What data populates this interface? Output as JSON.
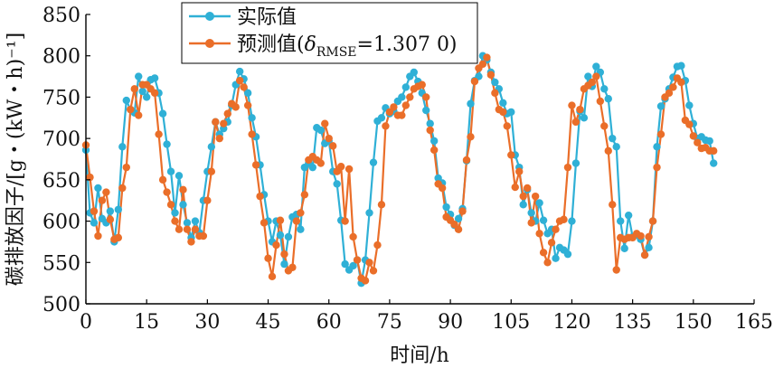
{
  "chart_data": {
    "type": "line",
    "title": "",
    "xlabel": "时间/h",
    "ylabel": "碳排放因子/[g・(kW・h)⁻¹]",
    "xlim": [
      0,
      165
    ],
    "ylim": [
      500,
      850
    ],
    "xticks": [
      0,
      15,
      30,
      45,
      60,
      75,
      90,
      105,
      120,
      135,
      150,
      165
    ],
    "yticks": [
      500,
      550,
      600,
      650,
      700,
      750,
      800,
      850
    ],
    "legend_position": "top-left-center",
    "series": [
      {
        "name": "实际值",
        "color": "#2fb0d6",
        "marker": "circle",
        "points": [
          [
            0,
            686
          ],
          [
            1,
            610
          ],
          [
            2,
            598
          ],
          [
            3,
            640
          ],
          [
            4,
            603
          ],
          [
            5,
            598
          ],
          [
            6,
            612
          ],
          [
            7,
            575
          ],
          [
            8,
            614
          ],
          [
            9,
            690
          ],
          [
            10,
            746
          ],
          [
            11,
            735
          ],
          [
            12,
            731
          ],
          [
            13,
            775
          ],
          [
            14,
            757
          ],
          [
            15,
            750
          ],
          [
            16,
            771
          ],
          [
            17,
            773
          ],
          [
            18,
            755
          ],
          [
            19,
            730
          ],
          [
            20,
            693
          ],
          [
            21,
            660
          ],
          [
            22,
            610
          ],
          [
            23,
            655
          ],
          [
            24,
            620
          ],
          [
            25,
            598
          ],
          [
            26,
            580
          ],
          [
            27,
            600
          ],
          [
            28,
            586
          ],
          [
            29,
            625
          ],
          [
            30,
            660
          ],
          [
            31,
            690
          ],
          [
            32,
            720
          ],
          [
            33,
            705
          ],
          [
            34,
            712
          ],
          [
            35,
            720
          ],
          [
            36,
            740
          ],
          [
            37,
            765
          ],
          [
            38,
            781
          ],
          [
            39,
            772
          ],
          [
            40,
            755
          ],
          [
            41,
            725
          ],
          [
            42,
            702
          ],
          [
            43,
            668
          ],
          [
            44,
            632
          ],
          [
            45,
            600
          ],
          [
            46,
            575
          ],
          [
            47,
            600
          ],
          [
            48,
            583
          ],
          [
            49,
            548
          ],
          [
            50,
            581
          ],
          [
            51,
            605
          ],
          [
            52,
            608
          ],
          [
            53,
            590
          ],
          [
            54,
            665
          ],
          [
            55,
            670
          ],
          [
            56,
            665
          ],
          [
            57,
            713
          ],
          [
            58,
            710
          ],
          [
            59,
            694
          ],
          [
            60,
            697
          ],
          [
            61,
            660
          ],
          [
            62,
            645
          ],
          [
            63,
            601
          ],
          [
            64,
            548
          ],
          [
            65,
            541
          ],
          [
            66,
            546
          ],
          [
            67,
            553
          ],
          [
            68,
            525
          ],
          [
            69,
            553
          ],
          [
            70,
            610
          ],
          [
            71,
            671
          ],
          [
            72,
            721
          ],
          [
            73,
            725
          ],
          [
            74,
            737
          ],
          [
            75,
            730
          ],
          [
            76,
            733
          ],
          [
            77,
            745
          ],
          [
            78,
            750
          ],
          [
            79,
            762
          ],
          [
            80,
            775
          ],
          [
            81,
            780
          ],
          [
            82,
            769
          ],
          [
            83,
            755
          ],
          [
            84,
            734
          ],
          [
            85,
            718
          ],
          [
            86,
            697
          ],
          [
            87,
            652
          ],
          [
            88,
            646
          ],
          [
            89,
            617
          ],
          [
            90,
            608
          ],
          [
            91,
            595
          ],
          [
            92,
            603
          ],
          [
            93,
            615
          ],
          [
            94,
            673
          ],
          [
            95,
            742
          ],
          [
            96,
            770
          ],
          [
            97,
            775
          ],
          [
            98,
            800
          ],
          [
            99,
            795
          ],
          [
            100,
            780
          ],
          [
            101,
            768
          ],
          [
            102,
            760
          ],
          [
            103,
            743
          ],
          [
            104,
            730
          ],
          [
            105,
            732
          ],
          [
            106,
            680
          ],
          [
            107,
            665
          ],
          [
            108,
            620
          ],
          [
            109,
            638
          ],
          [
            110,
            610
          ],
          [
            111,
            600
          ],
          [
            112,
            622
          ],
          [
            113,
            601
          ],
          [
            114,
            585
          ],
          [
            115,
            590
          ],
          [
            116,
            555
          ],
          [
            117,
            568
          ],
          [
            118,
            565
          ],
          [
            119,
            560
          ],
          [
            120,
            600
          ],
          [
            121,
            670
          ],
          [
            122,
            733
          ],
          [
            123,
            725
          ],
          [
            124,
            775
          ],
          [
            125,
            763
          ],
          [
            126,
            787
          ],
          [
            127,
            780
          ],
          [
            128,
            760
          ],
          [
            129,
            748
          ],
          [
            130,
            700
          ],
          [
            131,
            690
          ],
          [
            132,
            600
          ],
          [
            133,
            567
          ],
          [
            134,
            607
          ],
          [
            135,
            581
          ],
          [
            136,
            583
          ],
          [
            137,
            578
          ],
          [
            138,
            559
          ],
          [
            139,
            568
          ],
          [
            140,
            600
          ],
          [
            141,
            690
          ],
          [
            142,
            739
          ],
          [
            143,
            748
          ],
          [
            144,
            760
          ],
          [
            145,
            774
          ],
          [
            146,
            787
          ],
          [
            147,
            788
          ],
          [
            148,
            770
          ],
          [
            149,
            740
          ],
          [
            150,
            718
          ],
          [
            151,
            700
          ],
          [
            152,
            702
          ],
          [
            153,
            698
          ],
          [
            154,
            697
          ],
          [
            155,
            670
          ]
        ]
      },
      {
        "name": "预测值(δRMSE=1.307 0)",
        "legend_main": "预测值(",
        "legend_symbol": "δ",
        "legend_sub": "RMSE",
        "legend_tail": "=1.307 0)",
        "color": "#ea6e29",
        "marker": "circle",
        "points": [
          [
            0,
            692
          ],
          [
            1,
            653
          ],
          [
            2,
            612
          ],
          [
            3,
            582
          ],
          [
            4,
            625
          ],
          [
            5,
            635
          ],
          [
            6,
            602
          ],
          [
            7,
            578
          ],
          [
            8,
            580
          ],
          [
            9,
            640
          ],
          [
            10,
            665
          ],
          [
            11,
            735
          ],
          [
            12,
            760
          ],
          [
            13,
            728
          ],
          [
            14,
            765
          ],
          [
            15,
            765
          ],
          [
            16,
            760
          ],
          [
            17,
            755
          ],
          [
            18,
            705
          ],
          [
            19,
            650
          ],
          [
            20,
            635
          ],
          [
            21,
            620
          ],
          [
            22,
            600
          ],
          [
            23,
            590
          ],
          [
            24,
            638
          ],
          [
            25,
            590
          ],
          [
            26,
            575
          ],
          [
            27,
            590
          ],
          [
            28,
            582
          ],
          [
            29,
            582
          ],
          [
            30,
            625
          ],
          [
            31,
            660
          ],
          [
            32,
            720
          ],
          [
            33,
            700
          ],
          [
            34,
            718
          ],
          [
            35,
            730
          ],
          [
            36,
            742
          ],
          [
            37,
            738
          ],
          [
            38,
            770
          ],
          [
            39,
            762
          ],
          [
            40,
            740
          ],
          [
            41,
            705
          ],
          [
            42,
            668
          ],
          [
            43,
            630
          ],
          [
            44,
            598
          ],
          [
            45,
            555
          ],
          [
            46,
            533
          ],
          [
            47,
            571
          ],
          [
            48,
            601
          ],
          [
            49,
            560
          ],
          [
            50,
            540
          ],
          [
            51,
            544
          ],
          [
            52,
            600
          ],
          [
            53,
            610
          ],
          [
            54,
            632
          ],
          [
            55,
            674
          ],
          [
            56,
            678
          ],
          [
            57,
            674
          ],
          [
            58,
            670
          ],
          [
            59,
            718
          ],
          [
            60,
            700
          ],
          [
            61,
            691
          ],
          [
            62,
            660
          ],
          [
            63,
            666
          ],
          [
            64,
            600
          ],
          [
            65,
            663
          ],
          [
            66,
            581
          ],
          [
            67,
            553
          ],
          [
            68,
            531
          ],
          [
            69,
            528
          ],
          [
            70,
            550
          ],
          [
            71,
            540
          ],
          [
            72,
            571
          ],
          [
            73,
            620
          ],
          [
            74,
            715
          ],
          [
            75,
            732
          ],
          [
            76,
            738
          ],
          [
            77,
            728
          ],
          [
            78,
            728
          ],
          [
            79,
            740
          ],
          [
            80,
            750
          ],
          [
            81,
            760
          ],
          [
            82,
            763
          ],
          [
            83,
            765
          ],
          [
            84,
            750
          ],
          [
            85,
            710
          ],
          [
            86,
            686
          ],
          [
            87,
            645
          ],
          [
            88,
            640
          ],
          [
            89,
            605
          ],
          [
            90,
            601
          ],
          [
            91,
            596
          ],
          [
            92,
            590
          ],
          [
            93,
            612
          ],
          [
            94,
            674
          ],
          [
            95,
            702
          ],
          [
            96,
            769
          ],
          [
            97,
            785
          ],
          [
            98,
            790
          ],
          [
            99,
            798
          ],
          [
            100,
            777
          ],
          [
            101,
            755
          ],
          [
            102,
            735
          ],
          [
            103,
            732
          ],
          [
            104,
            715
          ],
          [
            105,
            680
          ],
          [
            106,
            641
          ],
          [
            107,
            660
          ],
          [
            108,
            630
          ],
          [
            109,
            640
          ],
          [
            110,
            598
          ],
          [
            111,
            630
          ],
          [
            112,
            585
          ],
          [
            113,
            562
          ],
          [
            114,
            550
          ],
          [
            115,
            574
          ],
          [
            116,
            590
          ],
          [
            117,
            600
          ],
          [
            118,
            602
          ],
          [
            119,
            665
          ],
          [
            120,
            740
          ],
          [
            121,
            720
          ],
          [
            122,
            735
          ],
          [
            123,
            760
          ],
          [
            124,
            764
          ],
          [
            125,
            768
          ],
          [
            126,
            775
          ],
          [
            127,
            745
          ],
          [
            128,
            715
          ],
          [
            129,
            685
          ],
          [
            130,
            620
          ],
          [
            131,
            541
          ],
          [
            132,
            580
          ],
          [
            133,
            578
          ],
          [
            134,
            580
          ],
          [
            135,
            580
          ],
          [
            136,
            585
          ],
          [
            137,
            582
          ],
          [
            138,
            559
          ],
          [
            139,
            581
          ],
          [
            140,
            600
          ],
          [
            141,
            665
          ],
          [
            142,
            705
          ],
          [
            143,
            750
          ],
          [
            144,
            755
          ],
          [
            145,
            762
          ],
          [
            146,
            773
          ],
          [
            147,
            768
          ],
          [
            148,
            722
          ],
          [
            149,
            717
          ],
          [
            150,
            703
          ],
          [
            151,
            695
          ],
          [
            152,
            688
          ],
          [
            153,
            689
          ],
          [
            154,
            685
          ],
          [
            155,
            685
          ]
        ]
      }
    ]
  }
}
